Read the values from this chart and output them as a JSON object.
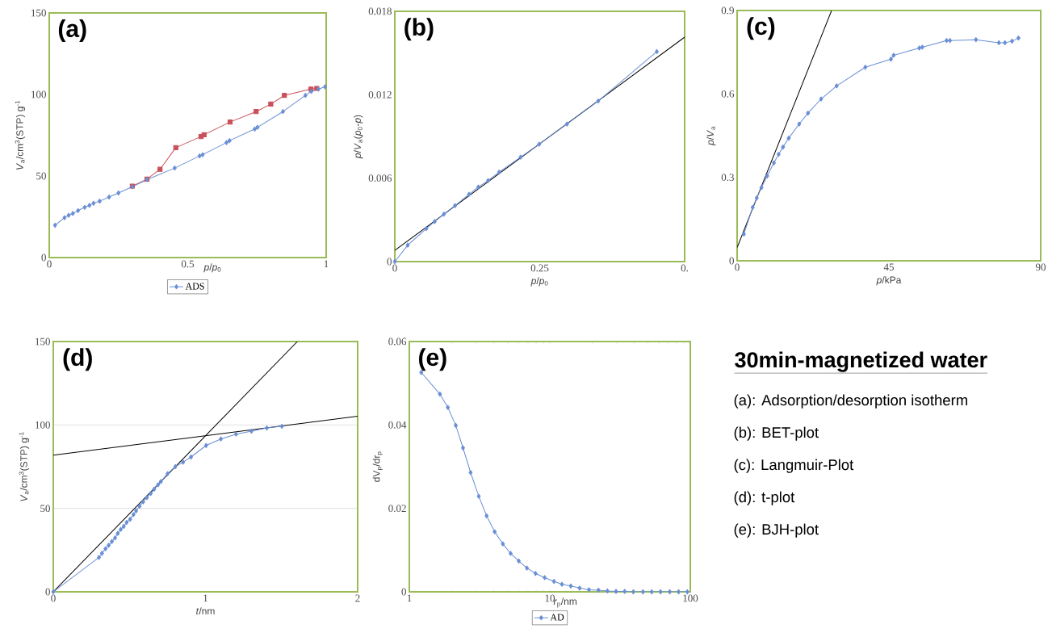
{
  "chart_data": [
    {
      "type": "line",
      "xlabel": "*p*/*p*$_{0}$",
      "ylabel": "*V*$_{a}$/cm$^{3}$(STP) g$^{-1}$",
      "annotations": [
        "(a)"
      ],
      "xlim": [
        0,
        1
      ],
      "ylim": [
        0,
        150
      ],
      "xticks": [
        0,
        0.5,
        1
      ],
      "yticks": [
        0,
        50,
        100,
        150
      ],
      "legend": "bottom",
      "series": [
        {
          "name": "ADS",
          "color": "#6a8fd4",
          "marker": "diamond",
          "x": [
            0.021,
            0.055,
            0.07,
            0.085,
            0.104,
            0.128,
            0.145,
            0.16,
            0.182,
            0.216,
            0.25,
            0.3,
            0.353,
            0.453,
            0.543,
            0.554,
            0.64,
            0.651,
            0.742,
            0.752,
            0.844,
            0.925,
            0.946,
            0.972,
            0.996
          ],
          "values": [
            19.8,
            24.4,
            25.9,
            27,
            28.8,
            30.8,
            32,
            33.3,
            34.6,
            37.1,
            39.6,
            43.4,
            47.8,
            54.9,
            62.3,
            63.1,
            70.5,
            71.7,
            78.8,
            79.9,
            89.5,
            99.4,
            101.9,
            103.3,
            104.7
          ]
        },
        {
          "color": "#c9505a",
          "marker": "square",
          "x": [
            0.3,
            0.353,
            0.4,
            0.457,
            0.548,
            0.559,
            0.653,
            0.747,
            0.8,
            0.849,
            0.945,
            0.966
          ],
          "values": [
            43.8,
            48.1,
            54.1,
            67.4,
            74.2,
            75.3,
            83.1,
            89.5,
            94.1,
            99.4,
            103.3,
            103.7
          ]
        }
      ]
    },
    {
      "type": "line",
      "xlabel": "*p*/*p*$_{0}$",
      "ylabel": "*p*/*V*$_{a}$(*p*$_{0}$-*p*)",
      "annotations": [
        "(b)"
      ],
      "xlim": [
        0,
        0.5
      ],
      "ylim": [
        0,
        0.018
      ],
      "xticks": [
        0,
        0.25,
        {
          "value": 0.5,
          "label": "0."
        }
      ],
      "yticks": [
        0,
        0.006,
        0.012,
        0.018
      ],
      "series": [
        {
          "color": "#6a8fd4",
          "marker": "diamond",
          "x": [
            0,
            0.0223,
            0.0544,
            0.0688,
            0.0846,
            0.104,
            0.128,
            0.144,
            0.161,
            0.18,
            0.217,
            0.249,
            0.297,
            0.351,
            0.452
          ],
          "values": [
            0,
            0.00118,
            0.00238,
            0.00288,
            0.00341,
            0.00403,
            0.00484,
            0.00536,
            0.00583,
            0.00643,
            0.00751,
            0.00844,
            0.00989,
            0.01155,
            0.0151
          ]
        },
        {
          "color": "#000000",
          "marker": "none",
          "x": [
            0,
            0.5
          ],
          "values": [
            0.00081,
            0.01614
          ]
        }
      ]
    },
    {
      "type": "line",
      "xlabel": "*p*/kPa",
      "ylabel": "*p*/*V*$_{a}$",
      "annotations": [
        "(c)"
      ],
      "xlim": [
        0,
        90
      ],
      "ylim": [
        0,
        0.9
      ],
      "xticks": [
        0,
        45,
        90
      ],
      "yticks": [
        0,
        0.3,
        0.6,
        0.9
      ],
      "series": [
        {
          "color": "#6a8fd4",
          "marker": "diamond",
          "x": [
            2.0,
            4.6,
            5.8,
            7.2,
            8.9,
            10.9,
            12.3,
            13.6,
            15.3,
            18.4,
            21.0,
            24.9,
            29.5,
            38.0,
            45.6,
            46.4,
            54.0,
            54.9,
            62.1,
            63.1,
            70.8,
            77.6,
            79.4,
            81.5,
            83.4
          ],
          "values": [
            0.096,
            0.192,
            0.226,
            0.263,
            0.305,
            0.352,
            0.383,
            0.409,
            0.441,
            0.492,
            0.531,
            0.582,
            0.629,
            0.696,
            0.725,
            0.739,
            0.765,
            0.768,
            0.792,
            0.792,
            0.795,
            0.784,
            0.784,
            0.79,
            0.801
          ]
        },
        {
          "color": "#000000",
          "marker": "none",
          "x": [
            0,
            28.0
          ],
          "values": [
            0.048,
            0.9
          ]
        }
      ]
    },
    {
      "type": "line",
      "xlabel": "*t*/nm",
      "ylabel": "*V*$_{a}$/cm$^{3}$(STP) g$^{-1}$",
      "annotations": [
        "(d)"
      ],
      "xlim": [
        0,
        2
      ],
      "ylim": [
        0,
        150
      ],
      "xticks": [
        0,
        1,
        2
      ],
      "yticks": [
        0,
        50,
        100,
        150
      ],
      "grid": "y",
      "series": [
        {
          "color": "#6a8fd4",
          "marker": "diamond",
          "x": [
            0,
            0.3,
            0.32,
            0.343,
            0.364,
            0.385,
            0.406,
            0.424,
            0.443,
            0.463,
            0.482,
            0.505,
            0.527,
            0.544,
            0.567,
            0.59,
            0.615,
            0.641,
            0.663,
            0.689,
            0.707,
            0.751,
            0.802,
            0.853,
            0.905,
            1.004,
            1.101,
            1.201,
            1.302,
            1.403,
            1.502
          ],
          "values": [
            0,
            20.6,
            23.1,
            25.8,
            27.9,
            30.2,
            32.3,
            35.0,
            37.4,
            39.2,
            41.6,
            43.5,
            46.3,
            48.5,
            51.3,
            53.9,
            56.5,
            59.0,
            61.5,
            64.2,
            66.1,
            70.8,
            75.0,
            77.7,
            80.8,
            87.7,
            91.6,
            94.5,
            96.3,
            98.2,
            99.2
          ]
        },
        {
          "color": "#000000",
          "marker": "none",
          "x": [
            0,
            1.604
          ],
          "values": [
            0,
            150
          ]
        },
        {
          "color": "#000000",
          "marker": "none",
          "x": [
            0,
            2
          ],
          "values": [
            81.9,
            105.2
          ]
        }
      ]
    },
    {
      "type": "line",
      "xlabel": "*r*$_{p}$/nm",
      "ylabel": "dV$_{p}$/dr$_{p}$",
      "annotations": [
        "(e)"
      ],
      "log": "x",
      "xlim": [
        1,
        100
      ],
      "ylim": [
        0,
        0.06
      ],
      "xticks": [
        1,
        10,
        100
      ],
      "yticks": [
        0,
        0.02,
        0.04,
        0.06
      ],
      "legend": "bottom",
      "series": [
        {
          "name": "AD",
          "color": "#6a8fd4",
          "marker": "diamond",
          "x": [
            1.215,
            1.65,
            1.88,
            2.14,
            2.41,
            2.73,
            3.12,
            3.55,
            4.05,
            4.63,
            5.26,
            6.01,
            6.87,
            7.91,
            9.19,
            10.7,
            12.2,
            14.1,
            16.3,
            19.0,
            22.2,
            25.7,
            29.6,
            34.1,
            39.3,
            46.0,
            53.1,
            61.4,
            71.4,
            82.6,
            95.2
          ],
          "values": [
            0.0526,
            0.0474,
            0.0442,
            0.0399,
            0.0345,
            0.0286,
            0.0229,
            0.0182,
            0.0144,
            0.0115,
            0.0092,
            0.0074,
            0.0057,
            0.0044,
            0.0034,
            0.0025,
            0.0018,
            0.0014,
            0.0009,
            0.0005,
            0.0004,
            0.0002,
            0.0001,
            0.0001,
            0,
            0,
            0,
            0,
            0,
            0,
            0
          ]
        }
      ]
    },
    {
      "type": "other",
      "title": "30min-magnetized water",
      "annotations": [
        "(a): Adsorption/desorption isotherm",
        "(b): BET-plot",
        "(c): Langmuir-Plot",
        "(d): t-plot",
        "(e): BJH-plot"
      ]
    }
  ]
}
